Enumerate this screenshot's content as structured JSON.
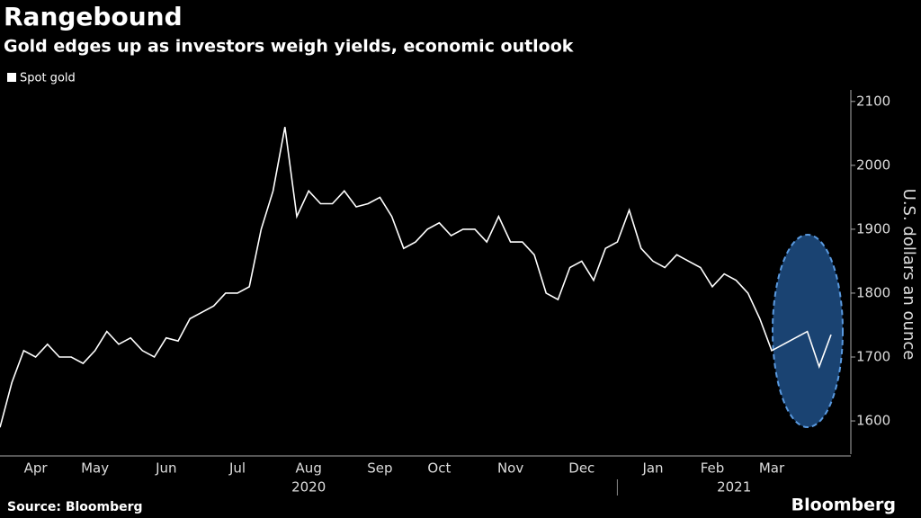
{
  "chart_data": {
    "type": "line",
    "title": "Rangebound",
    "subtitle": "Gold edges up as investors weigh yields, economic outlook",
    "y_label": "U.S. dollars an ounce",
    "source": "Source: Bloomberg",
    "brand": "Bloomberg",
    "categories": [
      null,
      null,
      null,
      "Apr",
      null,
      null,
      null,
      null,
      "May",
      null,
      null,
      null,
      null,
      null,
      "Jun",
      null,
      null,
      null,
      null,
      null,
      "Jul",
      null,
      null,
      null,
      null,
      null,
      "Aug",
      null,
      null,
      null,
      null,
      null,
      "Sep",
      null,
      null,
      null,
      null,
      "Oct",
      null,
      null,
      null,
      null,
      null,
      "Nov",
      null,
      null,
      null,
      null,
      null,
      "Dec",
      null,
      null,
      null,
      null,
      null,
      "Jan",
      null,
      null,
      null,
      null,
      "Feb",
      null,
      null,
      null,
      null,
      "Mar",
      null,
      null,
      null,
      null,
      null
    ],
    "year_labels": [
      "2020",
      "2021"
    ],
    "series": [
      {
        "name": "Spot gold",
        "color": "#ffffff",
        "values": [
          1590,
          1660,
          1710,
          1700,
          1720,
          1700,
          1700,
          1690,
          1710,
          1740,
          1720,
          1730,
          1710,
          1700,
          1730,
          1725,
          1760,
          1770,
          1780,
          1800,
          1800,
          1810,
          1900,
          1960,
          2060,
          1920,
          1960,
          1940,
          1940,
          1960,
          1935,
          1940,
          1950,
          1920,
          1870,
          1880,
          1900,
          1910,
          1890,
          1900,
          1900,
          1880,
          1920,
          1880,
          1880,
          1860,
          1800,
          1790,
          1840,
          1850,
          1820,
          1870,
          1880,
          1930,
          1870,
          1850,
          1840,
          1860,
          1850,
          1840,
          1810,
          1830,
          1820,
          1800,
          1760,
          1710,
          1720,
          1730,
          1740,
          1685,
          1735
        ]
      }
    ],
    "ylim": [
      1548,
      2118
    ],
    "yticks": [
      1600,
      1700,
      1800,
      1900,
      2000,
      2100
    ]
  }
}
